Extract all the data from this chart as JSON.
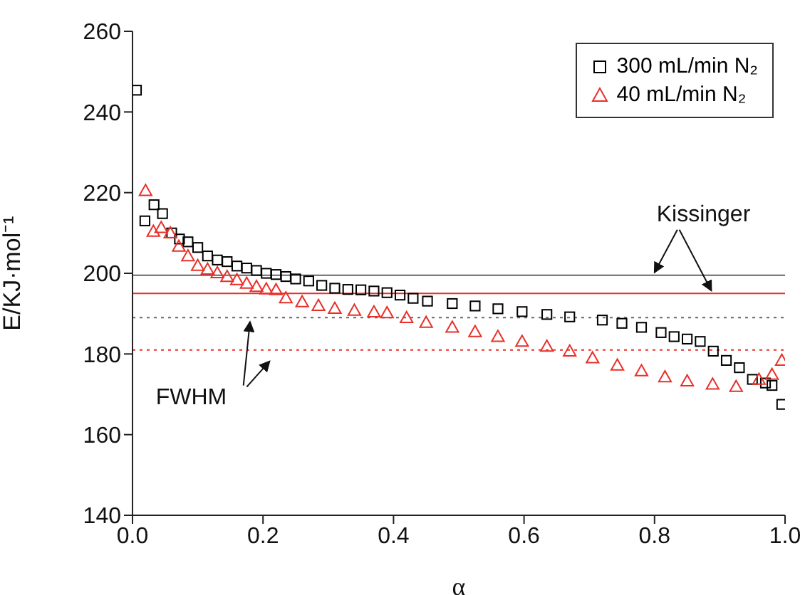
{
  "chart_data": {
    "type": "scatter",
    "xlabel": "α",
    "ylabel": "E/KJ·mol⁻¹",
    "xlim": [
      0,
      1
    ],
    "ylim": [
      140,
      260
    ],
    "xticks": [
      {
        "value": 0,
        "label": "0.0"
      },
      0.2,
      0.4,
      0.6,
      0.8,
      {
        "value": 1,
        "label": "1.0"
      }
    ],
    "yticks": [
      140,
      160,
      180,
      200,
      220,
      240,
      260
    ],
    "legend": "top right",
    "grid": false,
    "series": [
      {
        "name": "300 mL/min N₂",
        "color": "#000000",
        "marker": "square",
        "x": [
          0.006,
          0.019,
          0.033,
          0.046,
          0.06,
          0.072,
          0.085,
          0.1,
          0.115,
          0.13,
          0.145,
          0.16,
          0.175,
          0.19,
          0.205,
          0.22,
          0.235,
          0.25,
          0.27,
          0.29,
          0.31,
          0.33,
          0.35,
          0.37,
          0.39,
          0.41,
          0.43,
          0.452,
          0.49,
          0.525,
          0.56,
          0.597,
          0.635,
          0.67,
          0.72,
          0.75,
          0.78,
          0.81,
          0.83,
          0.85,
          0.87,
          0.89,
          0.91,
          0.93,
          0.95,
          0.97,
          0.98,
          0.995
        ],
        "values": [
          245.4,
          213,
          217,
          214.8,
          210,
          208.5,
          207.8,
          206.4,
          204.3,
          203.3,
          202.9,
          201.8,
          201.3,
          200.7,
          200,
          199.7,
          199.2,
          198.6,
          198.1,
          197,
          196.3,
          196,
          195.9,
          195.6,
          195.2,
          194.6,
          193.8,
          193.1,
          192.5,
          191.9,
          191.2,
          190.5,
          189.8,
          189.2,
          188.4,
          187.6,
          186.6,
          185.3,
          184.3,
          183.7,
          183.1,
          180.7,
          178.4,
          176.6,
          173.7,
          172.8,
          172.2,
          167.5
        ]
      },
      {
        "name": "40 mL/min N₂",
        "color": "#e8302a",
        "marker": "triangle",
        "x": [
          0.02,
          0.032,
          0.044,
          0.058,
          0.071,
          0.085,
          0.1,
          0.115,
          0.13,
          0.145,
          0.16,
          0.175,
          0.19,
          0.205,
          0.22,
          0.235,
          0.26,
          0.285,
          0.31,
          0.34,
          0.37,
          0.39,
          0.42,
          0.45,
          0.49,
          0.525,
          0.56,
          0.597,
          0.635,
          0.67,
          0.705,
          0.743,
          0.78,
          0.816,
          0.85,
          0.889,
          0.925,
          0.96,
          0.98,
          0.995
        ],
        "values": [
          220.5,
          210.4,
          211.3,
          210,
          206.7,
          204.3,
          201.9,
          201,
          200.1,
          199.2,
          198.4,
          197.5,
          196.7,
          196.1,
          195.9,
          193.9,
          192.9,
          192,
          191.3,
          190.8,
          190.4,
          190.2,
          189,
          187.8,
          186.6,
          185.5,
          184.3,
          183.1,
          181.9,
          180.7,
          179,
          177.2,
          175.8,
          174.3,
          173.3,
          172.5,
          171.9,
          173.7,
          174.9,
          178.4
        ]
      }
    ],
    "ref_lines": [
      {
        "axis": "y",
        "value": 199.5,
        "color": "#666666",
        "line_style": "solid"
      },
      {
        "axis": "y",
        "value": 195,
        "color": "#e8302a",
        "line_style": "solid"
      },
      {
        "axis": "y",
        "value": 189,
        "color": "#666666",
        "line_style": "dotted"
      },
      {
        "axis": "y",
        "value": 181,
        "color": "#e8302a",
        "line_style": "dotted"
      }
    ],
    "annotations": [
      {
        "text": "Kissinger",
        "x": 0.8,
        "y": 199.5
      },
      {
        "text": "FWHM",
        "x": 0.18,
        "y": 189
      }
    ]
  }
}
